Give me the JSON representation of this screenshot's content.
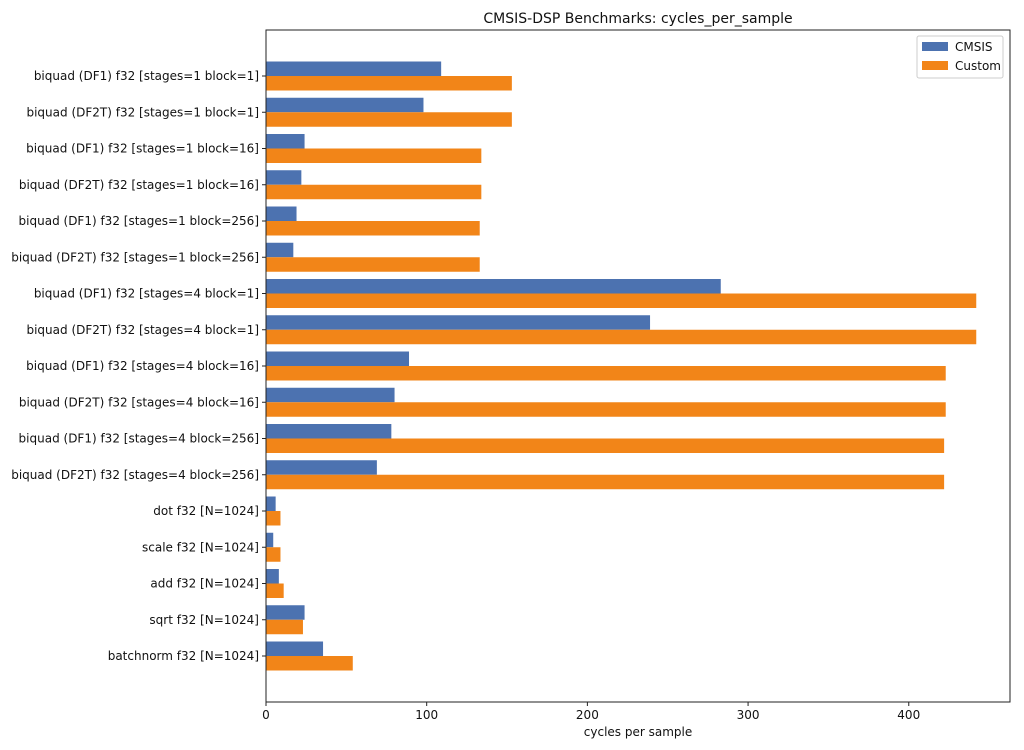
{
  "chart_data": {
    "type": "bar",
    "orientation": "horizontal",
    "title": "CMSIS-DSP Benchmarks: cycles_per_sample",
    "xlabel": "cycles per sample",
    "ylabel": "",
    "xlim": [
      0,
      463
    ],
    "xticks": [
      0,
      100,
      200,
      300,
      400
    ],
    "legend_position": "top-right",
    "colors": {
      "CMSIS": "#4c72b0",
      "Custom": "#f28518"
    },
    "categories": [
      "biquad (DF1) f32 [stages=1 block=1]",
      "biquad (DF2T) f32 [stages=1 block=1]",
      "biquad (DF1) f32 [stages=1 block=16]",
      "biquad (DF2T) f32 [stages=1 block=16]",
      "biquad (DF1) f32 [stages=1 block=256]",
      "biquad (DF2T) f32 [stages=1 block=256]",
      "biquad (DF1) f32 [stages=4 block=1]",
      "biquad (DF2T) f32 [stages=4 block=1]",
      "biquad (DF1) f32 [stages=4 block=16]",
      "biquad (DF2T) f32 [stages=4 block=16]",
      "biquad (DF1) f32 [stages=4 block=256]",
      "biquad (DF2T) f32 [stages=4 block=256]",
      "dot f32 [N=1024]",
      "scale f32 [N=1024]",
      "add f32 [N=1024]",
      "sqrt f32 [N=1024]",
      "batchnorm f32 [N=1024]"
    ],
    "series": [
      {
        "name": "CMSIS",
        "values": [
          109,
          98,
          24,
          22,
          19,
          17,
          283,
          239,
          89,
          80,
          78,
          69,
          6,
          4.5,
          8,
          24,
          35.5
        ]
      },
      {
        "name": "Custom",
        "values": [
          153,
          153,
          134,
          134,
          133,
          133,
          442,
          442,
          423,
          423,
          422,
          422,
          9,
          9,
          11,
          23,
          54
        ]
      }
    ]
  }
}
